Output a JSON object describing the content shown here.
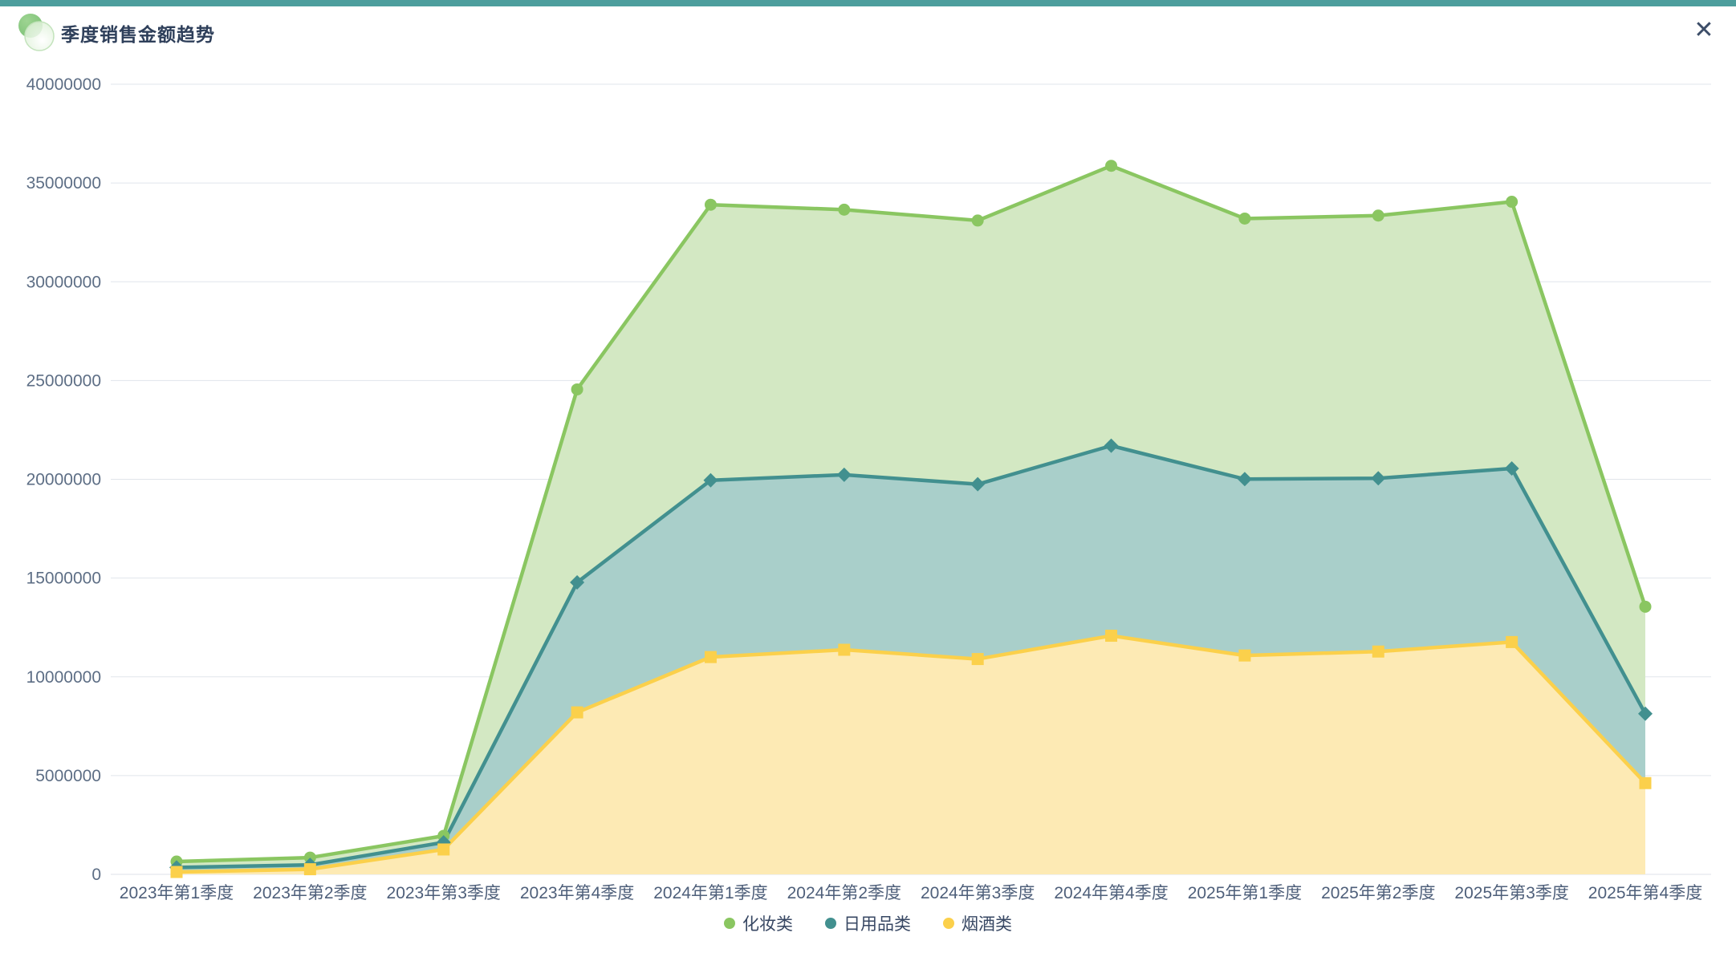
{
  "header": {
    "title": "季度销售金额趋势",
    "close_icon": "✕"
  },
  "theme": {
    "accent_color": "#4d9e9d",
    "title_color": "#2e3f5a",
    "axis_label_color": "#5d6e85",
    "grid_color": "#e1e5eb",
    "background": "#ffffff"
  },
  "chart_data": {
    "type": "area",
    "title": "季度销售金额趋势",
    "categories": [
      "2023年第1季度",
      "2023年第2季度",
      "2023年第3季度",
      "2023年第4季度",
      "2024年第1季度",
      "2024年第2季度",
      "2024年第3季度",
      "2024年第4季度",
      "2025年第1季度",
      "2025年第2季度",
      "2025年第3季度",
      "2025年第4季度"
    ],
    "series": [
      {
        "name": "化妆类",
        "marker": "circle",
        "color": "#8ac661",
        "fill": "#d3e8c3",
        "values": [
          650000,
          850000,
          1950000,
          24550000,
          33900000,
          33650000,
          33100000,
          35870000,
          33200000,
          33350000,
          34050000,
          13550000
        ]
      },
      {
        "name": "日用品类",
        "marker": "diamond",
        "color": "#42908f",
        "fill": "#a9cfca",
        "values": [
          350000,
          480000,
          1620000,
          14780000,
          19950000,
          20230000,
          19750000,
          21700000,
          20010000,
          20050000,
          20550000,
          8130000
        ]
      },
      {
        "name": "烟酒类",
        "marker": "square",
        "color": "#fbd04b",
        "fill": "#fdeab4",
        "values": [
          120000,
          260000,
          1260000,
          8200000,
          11000000,
          11370000,
          10900000,
          12080000,
          11080000,
          11280000,
          11760000,
          4620000
        ]
      }
    ],
    "xlabel": "",
    "ylabel": "",
    "ylim": [
      0,
      40000000
    ],
    "y_tick_step": 5000000,
    "y_tick_labels": [
      "0",
      "5000000",
      "10000000",
      "15000000",
      "20000000",
      "25000000",
      "30000000",
      "35000000",
      "40000000"
    ],
    "grid": true,
    "legend_position": "bottom",
    "legend": [
      "化妆类",
      "日用品类",
      "烟酒类"
    ]
  }
}
